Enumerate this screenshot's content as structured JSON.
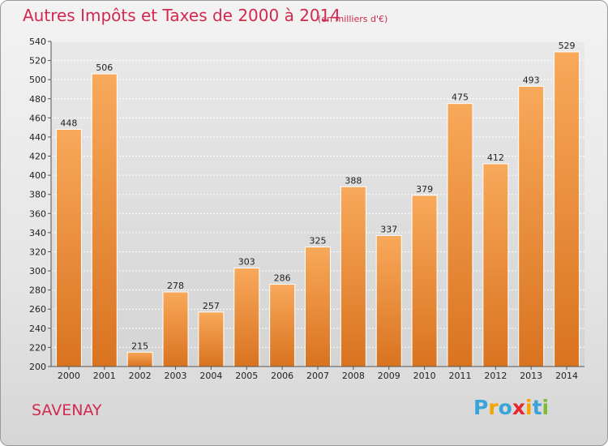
{
  "title": "Autres Impôts et Taxes de 2000 à 2014",
  "unit": "(en milliers d'€)",
  "city": "SAVENAY",
  "logo": {
    "letters": [
      "P",
      "r",
      "o",
      "x",
      "i",
      "t",
      "i"
    ],
    "colors": [
      "#3aa4d8",
      "#f4a300",
      "#3aa4d8",
      "#e8262f",
      "#f4a300",
      "#3aa4d8",
      "#7cbd33"
    ]
  },
  "colors": {
    "title": "#d2294f",
    "bar_top": "#f8a95a",
    "bar_bottom": "#d97320"
  },
  "chart_data": {
    "type": "bar",
    "categories": [
      "2000",
      "2001",
      "2002",
      "2003",
      "2004",
      "2005",
      "2006",
      "2007",
      "2008",
      "2009",
      "2010",
      "2011",
      "2012",
      "2013",
      "2014"
    ],
    "values": [
      448,
      506,
      215,
      278,
      257,
      303,
      286,
      325,
      388,
      337,
      379,
      475,
      412,
      493,
      529
    ],
    "value_labels": [
      "448",
      "506",
      "215",
      "278",
      "257",
      "303",
      "286",
      "325",
      "388",
      "337",
      "379",
      "475",
      "412",
      "493",
      "529"
    ],
    "ylim": [
      200,
      540
    ],
    "yticks": [
      "200",
      "220",
      "240",
      "260",
      "280",
      "300",
      "320",
      "340",
      "360",
      "380",
      "400",
      "420",
      "440",
      "460",
      "480",
      "500",
      "520",
      "540"
    ],
    "grid": true
  }
}
